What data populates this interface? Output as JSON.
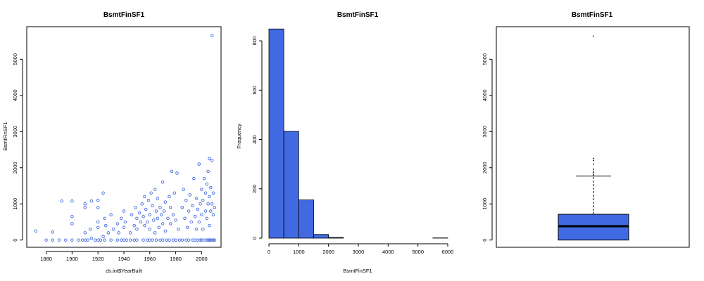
{
  "chart_data": [
    {
      "type": "scatter",
      "title": "BsmtFinSF1",
      "xlabel": "ds.int$YearBuilt",
      "ylabel": "BsmtFinSF1",
      "xlim": [
        1865,
        2015
      ],
      "ylim": [
        -200,
        5900
      ],
      "xticks": [
        1880,
        1900,
        1920,
        1940,
        1960,
        1980,
        2000
      ],
      "yticks": [
        0,
        1000,
        2000,
        3000,
        4000,
        5000
      ],
      "point_color": "#4169E1",
      "points": [
        [
          1872,
          250
        ],
        [
          1880,
          0
        ],
        [
          1885,
          220
        ],
        [
          1885,
          0
        ],
        [
          1890,
          0
        ],
        [
          1892,
          1080
        ],
        [
          1895,
          0
        ],
        [
          1900,
          1080
        ],
        [
          1900,
          650
        ],
        [
          1900,
          450
        ],
        [
          1900,
          0
        ],
        [
          1905,
          0
        ],
        [
          1908,
          0
        ],
        [
          1910,
          1000
        ],
        [
          1910,
          900
        ],
        [
          1910,
          200
        ],
        [
          1910,
          0
        ],
        [
          1912,
          0
        ],
        [
          1914,
          300
        ],
        [
          1915,
          50
        ],
        [
          1915,
          1080
        ],
        [
          1918,
          0
        ],
        [
          1920,
          1100
        ],
        [
          1920,
          900
        ],
        [
          1920,
          500
        ],
        [
          1920,
          0
        ],
        [
          1920,
          350
        ],
        [
          1922,
          0
        ],
        [
          1924,
          1300
        ],
        [
          1924,
          100
        ],
        [
          1925,
          600
        ],
        [
          1925,
          0
        ],
        [
          1926,
          400
        ],
        [
          1928,
          200
        ],
        [
          1930,
          0
        ],
        [
          1930,
          700
        ],
        [
          1932,
          300
        ],
        [
          1935,
          0
        ],
        [
          1935,
          450
        ],
        [
          1936,
          200
        ],
        [
          1938,
          600
        ],
        [
          1938,
          0
        ],
        [
          1940,
          800
        ],
        [
          1940,
          350
        ],
        [
          1940,
          0
        ],
        [
          1941,
          500
        ],
        [
          1942,
          0
        ],
        [
          1945,
          200
        ],
        [
          1945,
          0
        ],
        [
          1946,
          700
        ],
        [
          1948,
          400
        ],
        [
          1948,
          0
        ],
        [
          1949,
          900
        ],
        [
          1950,
          0
        ],
        [
          1950,
          600
        ],
        [
          1950,
          300
        ],
        [
          1952,
          750
        ],
        [
          1953,
          500
        ],
        [
          1954,
          1000
        ],
        [
          1955,
          0
        ],
        [
          1955,
          650
        ],
        [
          1956,
          1200
        ],
        [
          1956,
          400
        ],
        [
          1957,
          850
        ],
        [
          1958,
          0
        ],
        [
          1958,
          500
        ],
        [
          1959,
          1100
        ],
        [
          1960,
          0
        ],
        [
          1960,
          700
        ],
        [
          1960,
          300
        ],
        [
          1961,
          1300
        ],
        [
          1962,
          950
        ],
        [
          1962,
          0
        ],
        [
          1963,
          550
        ],
        [
          1964,
          1400
        ],
        [
          1964,
          200
        ],
        [
          1965,
          0
        ],
        [
          1965,
          800
        ],
        [
          1966,
          600
        ],
        [
          1966,
          1150
        ],
        [
          1967,
          350
        ],
        [
          1968,
          0
        ],
        [
          1968,
          900
        ],
        [
          1969,
          700
        ],
        [
          1970,
          1600
        ],
        [
          1970,
          0
        ],
        [
          1970,
          450
        ],
        [
          1971,
          800
        ],
        [
          1972,
          1050
        ],
        [
          1972,
          250
        ],
        [
          1973,
          0
        ],
        [
          1974,
          600
        ],
        [
          1975,
          1200
        ],
        [
          1975,
          0
        ],
        [
          1976,
          900
        ],
        [
          1976,
          450
        ],
        [
          1977,
          1900
        ],
        [
          1978,
          0
        ],
        [
          1978,
          700
        ],
        [
          1979,
          1300
        ],
        [
          1980,
          550
        ],
        [
          1980,
          0
        ],
        [
          1981,
          1850
        ],
        [
          1982,
          300
        ],
        [
          1983,
          0
        ],
        [
          1985,
          900
        ],
        [
          1985,
          0
        ],
        [
          1986,
          1400
        ],
        [
          1987,
          600
        ],
        [
          1988,
          0
        ],
        [
          1988,
          1100
        ],
        [
          1989,
          350
        ],
        [
          1990,
          0
        ],
        [
          1990,
          800
        ],
        [
          1991,
          1250
        ],
        [
          1992,
          500
        ],
        [
          1993,
          0
        ],
        [
          1993,
          950
        ],
        [
          1994,
          1700
        ],
        [
          1995,
          0
        ],
        [
          1995,
          650
        ],
        [
          1996,
          1150
        ],
        [
          1996,
          300
        ],
        [
          1997,
          0
        ],
        [
          1997,
          850
        ],
        [
          1998,
          2100
        ],
        [
          1998,
          500
        ],
        [
          1999,
          0
        ],
        [
          1999,
          1000
        ],
        [
          2000,
          1400
        ],
        [
          2000,
          700
        ],
        [
          2000,
          0
        ],
        [
          2001,
          1100
        ],
        [
          2001,
          300
        ],
        [
          2002,
          1700
        ],
        [
          2002,
          0
        ],
        [
          2003,
          800
        ],
        [
          2003,
          1300
        ],
        [
          2004,
          0
        ],
        [
          2004,
          1550
        ],
        [
          2004,
          600
        ],
        [
          2005,
          1900
        ],
        [
          2005,
          0
        ],
        [
          2005,
          1000
        ],
        [
          2006,
          1200
        ],
        [
          2006,
          400
        ],
        [
          2006,
          0
        ],
        [
          2006,
          2250
        ],
        [
          2007,
          800
        ],
        [
          2007,
          1450
        ],
        [
          2007,
          0
        ],
        [
          2008,
          2200
        ],
        [
          2008,
          1000
        ],
        [
          2008,
          0
        ],
        [
          2008,
          5650
        ],
        [
          2009,
          700
        ],
        [
          2009,
          1300
        ],
        [
          2009,
          0
        ],
        [
          2010,
          900
        ],
        [
          2010,
          0
        ]
      ]
    },
    {
      "type": "bar",
      "title": "BsmtFinSF1",
      "xlabel": "BsmtFinSF1",
      "ylabel": "Frequency",
      "xlim": [
        0,
        6000
      ],
      "ylim": [
        0,
        880
      ],
      "xticks": [
        0,
        1000,
        2000,
        3000,
        4000,
        5000,
        6000
      ],
      "yticks": [
        0,
        200,
        400,
        600,
        800
      ],
      "bin_edges": [
        0,
        500,
        1000,
        1500,
        2000,
        2500,
        3000,
        3500,
        4000,
        4500,
        5000,
        5500,
        6000
      ],
      "values": [
        848,
        433,
        155,
        15,
        3,
        0,
        0,
        0,
        0,
        0,
        0,
        1
      ],
      "bar_color": "#4169E1"
    },
    {
      "type": "boxplot",
      "title": "BsmtFinSF1",
      "ylim": [
        -200,
        5900
      ],
      "yticks": [
        0,
        1000,
        2000,
        3000,
        4000,
        5000
      ],
      "min": 0,
      "q1": 0,
      "median": 384,
      "q3": 712,
      "whisker_high": 1770,
      "outliers": [
        1800,
        1860,
        1900,
        1960,
        2100,
        2200,
        2260,
        5640
      ],
      "box_color": "#4169E1"
    }
  ]
}
